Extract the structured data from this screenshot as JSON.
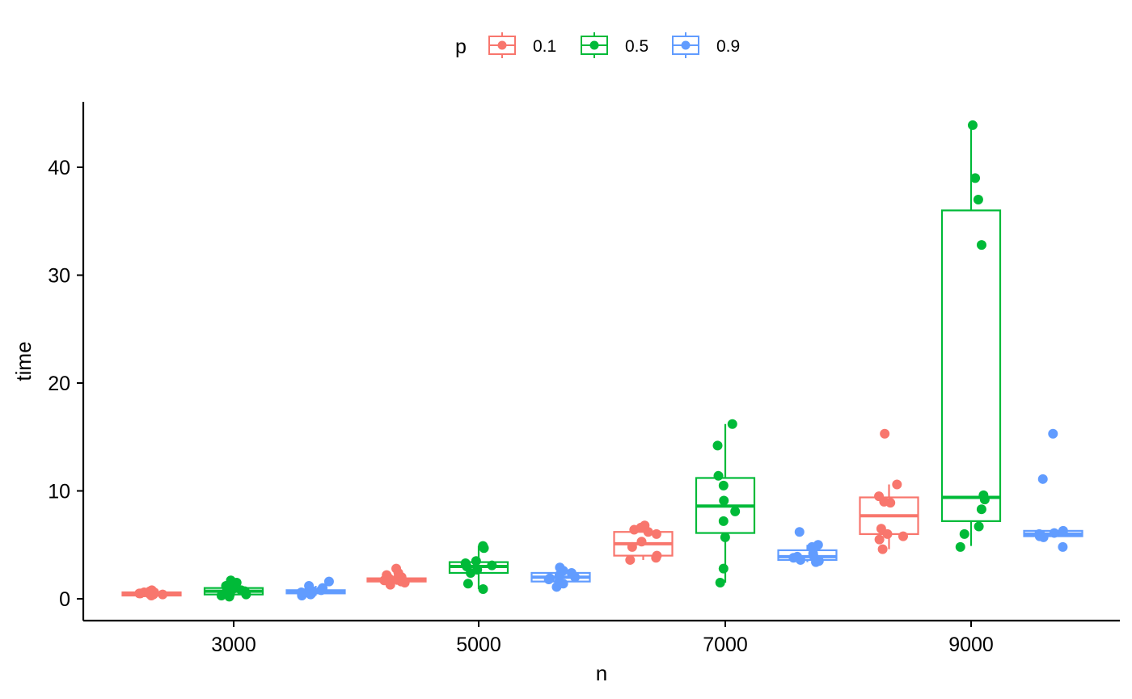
{
  "chart_data": {
    "type": "boxplot",
    "xlabel": "n",
    "ylabel": "time",
    "categories": [
      "3000",
      "5000",
      "7000",
      "9000"
    ],
    "ylim": [
      -2,
      46
    ],
    "yticks": [
      0,
      10,
      20,
      30,
      40
    ],
    "grid": false,
    "legend": {
      "title": "p",
      "position": "top"
    },
    "series": [
      {
        "name": "0.1",
        "color": "#F8766D",
        "boxes": [
          {
            "q1": 0.3,
            "median": 0.5,
            "q3": 0.6,
            "lower": 0.2,
            "upper": 0.8
          },
          {
            "q1": 1.6,
            "median": 1.7,
            "q3": 1.9,
            "lower": 1.3,
            "upper": 2.4
          },
          {
            "q1": 4.0,
            "median": 5.1,
            "q3": 6.2,
            "lower": 3.6,
            "upper": 6.8
          },
          {
            "q1": 6.0,
            "median": 7.7,
            "q3": 9.4,
            "lower": 4.6,
            "upper": 10.6
          }
        ],
        "points": [
          [
            0.3,
            0.4,
            0.5,
            0.6,
            0.7,
            0.8,
            0.5,
            0.4,
            0.6,
            0.5
          ],
          [
            1.3,
            1.5,
            1.6,
            1.7,
            1.8,
            1.9,
            2.0,
            2.2,
            2.4,
            2.8,
            1.7
          ],
          [
            3.6,
            3.8,
            4.0,
            4.8,
            5.3,
            6.0,
            6.4,
            6.6,
            6.8,
            6.2
          ],
          [
            4.6,
            5.5,
            5.8,
            6.0,
            6.5,
            8.9,
            9.0,
            9.5,
            10.6,
            15.3
          ]
        ]
      },
      {
        "name": "0.5",
        "color": "#00BA38",
        "boxes": [
          {
            "q1": 0.4,
            "median": 0.7,
            "q3": 1.0,
            "lower": 0.2,
            "upper": 1.7
          },
          {
            "q1": 2.4,
            "median": 3.0,
            "q3": 3.4,
            "lower": 0.9,
            "upper": 4.9
          },
          {
            "q1": 6.1,
            "median": 8.6,
            "q3": 11.2,
            "lower": 1.5,
            "upper": 16.2
          },
          {
            "q1": 7.2,
            "median": 9.4,
            "q3": 36.0,
            "lower": 4.9,
            "upper": 43.8
          }
        ],
        "points": [
          [
            0.2,
            0.3,
            0.4,
            0.6,
            0.7,
            0.9,
            1.2,
            1.5,
            1.7,
            0.8
          ],
          [
            0.9,
            1.4,
            2.4,
            2.7,
            3.0,
            3.3,
            3.5,
            4.7,
            4.9,
            3.1
          ],
          [
            1.5,
            2.8,
            5.7,
            7.2,
            8.1,
            9.1,
            10.5,
            11.4,
            14.2,
            16.2
          ],
          [
            4.8,
            6.0,
            6.7,
            8.3,
            9.2,
            9.6,
            32.8,
            37.0,
            39.0,
            43.9
          ]
        ]
      },
      {
        "name": "0.9",
        "color": "#619CFF",
        "boxes": [
          {
            "q1": 0.5,
            "median": 0.6,
            "q3": 0.8,
            "lower": 0.3,
            "upper": 1.2
          },
          {
            "q1": 1.6,
            "median": 2.0,
            "q3": 2.4,
            "lower": 1.1,
            "upper": 2.9
          },
          {
            "q1": 3.6,
            "median": 3.9,
            "q3": 4.5,
            "lower": 3.4,
            "upper": 5.0
          },
          {
            "q1": 5.8,
            "median": 6.0,
            "q3": 6.3,
            "lower": 5.7,
            "upper": 6.4
          }
        ],
        "points": [
          [
            0.3,
            0.4,
            0.5,
            0.6,
            0.7,
            0.8,
            1.0,
            1.2,
            1.6,
            0.6
          ],
          [
            1.1,
            1.4,
            1.6,
            1.8,
            2.0,
            2.2,
            2.4,
            2.6,
            2.9,
            1.9
          ],
          [
            3.4,
            3.5,
            3.6,
            3.8,
            3.9,
            4.0,
            4.2,
            4.8,
            5.0,
            6.2
          ],
          [
            4.8,
            5.7,
            5.8,
            5.9,
            6.0,
            6.1,
            6.2,
            6.3,
            11.1,
            15.3
          ]
        ]
      }
    ]
  }
}
